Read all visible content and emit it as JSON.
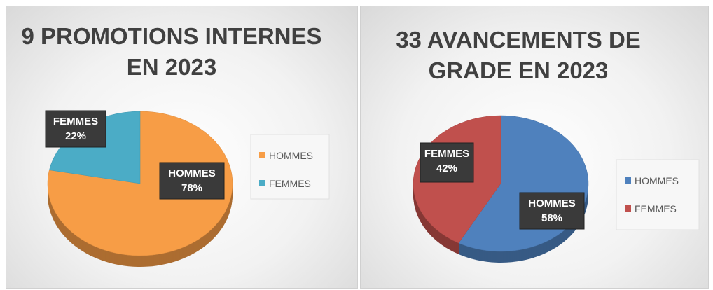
{
  "chart_data": [
    {
      "type": "pie",
      "title": "9 PROMOTIONS INTERNES EN 2023",
      "categories": [
        "HOMMES",
        "FEMMES"
      ],
      "values": [
        78,
        22
      ],
      "value_labels": [
        "78%",
        "22%"
      ],
      "colors": [
        "#f79d46",
        "#4bacc6"
      ],
      "legend": "right"
    },
    {
      "type": "pie",
      "title": "33 AVANCEMENTS DE GRADE EN 2023",
      "categories": [
        "HOMMES",
        "FEMMES"
      ],
      "values": [
        58,
        42
      ],
      "value_labels": [
        "58%",
        "42%"
      ],
      "colors": [
        "#4f81bd",
        "#c0504d"
      ],
      "legend": "right"
    }
  ]
}
